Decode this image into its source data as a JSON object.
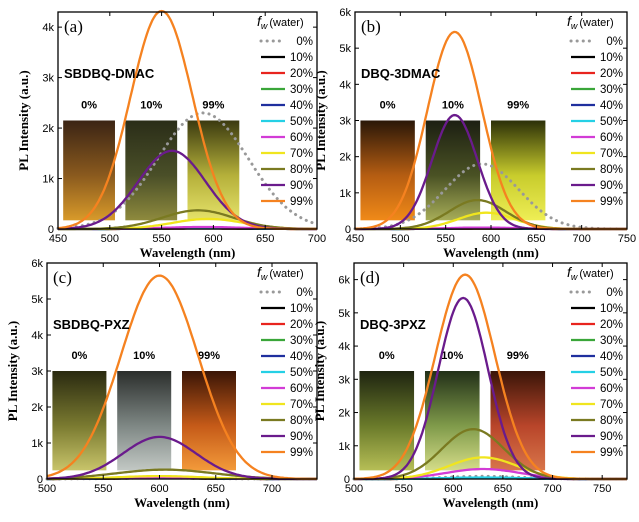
{
  "chart_data": [
    {
      "type": "line",
      "panel_label": "(a)",
      "compound": "SBDBQ-DMAC",
      "xlabel": "Wavelength (nm)",
      "ylabel": "PL Intensity (a.u.)",
      "xlim": [
        450,
        700
      ],
      "ylim": [
        0,
        4300
      ],
      "xticks": [
        450,
        500,
        550,
        600,
        650,
        700
      ],
      "yticks": [
        0,
        1000,
        2000,
        3000,
        4000
      ],
      "ytick_labels": [
        "0",
        "1k",
        "2k",
        "3k",
        "4k"
      ],
      "vial_labels": [
        "0%",
        "10%",
        "99%"
      ],
      "legend_title": "f",
      "legend_title_sub": "w",
      "legend_title_suffix": "(water)",
      "legend": [
        "0%",
        "10%",
        "20%",
        "30%",
        "40%",
        "50%",
        "60%",
        "70%",
        "80%",
        "90%",
        "99%"
      ],
      "series": [
        {
          "name": "0%",
          "color": "#999999",
          "dotted": true,
          "peak": 590,
          "width": 70,
          "amp": 2300
        },
        {
          "name": "10%",
          "color": "#000000",
          "peak": 590,
          "width": 60,
          "amp": 10
        },
        {
          "name": "20%",
          "color": "#e8241e",
          "peak": 590,
          "width": 60,
          "amp": 12
        },
        {
          "name": "30%",
          "color": "#3aa639",
          "peak": 590,
          "width": 60,
          "amp": 15
        },
        {
          "name": "40%",
          "color": "#1f2f9e",
          "peak": 590,
          "width": 60,
          "amp": 18
        },
        {
          "name": "50%",
          "color": "#25d0e5",
          "peak": 590,
          "width": 60,
          "amp": 25
        },
        {
          "name": "60%",
          "color": "#d23cd6",
          "peak": 590,
          "width": 60,
          "amp": 40
        },
        {
          "name": "70%",
          "color": "#f0e51e",
          "peak": 595,
          "width": 55,
          "amp": 200
        },
        {
          "name": "80%",
          "color": "#7a7a21",
          "peak": 585,
          "width": 55,
          "amp": 370
        },
        {
          "name": "90%",
          "color": "#6a1b8c",
          "peak": 560,
          "width": 52,
          "amp": 1550
        },
        {
          "name": "99%",
          "color": "#f58220",
          "peak": 550,
          "width": 48,
          "amp": 4320
        }
      ]
    },
    {
      "type": "line",
      "panel_label": "(b)",
      "compound": "DBQ-3DMAC",
      "xlabel": "Wavelength (nm)",
      "ylabel": "PL Intensity (a.u.)",
      "xlim": [
        450,
        750
      ],
      "ylim": [
        0,
        6000
      ],
      "xticks": [
        450,
        500,
        550,
        600,
        650,
        700,
        750
      ],
      "yticks": [
        0,
        1000,
        2000,
        3000,
        4000,
        5000,
        6000
      ],
      "ytick_labels": [
        "0",
        "1k",
        "2k",
        "3k",
        "4k",
        "5k",
        "6k"
      ],
      "vial_labels": [
        "0%",
        "10%",
        "99%"
      ],
      "legend_title": "f",
      "legend_title_sub": "w",
      "legend_title_suffix": "(water)",
      "legend": [
        "0%",
        "10%",
        "20%",
        "30%",
        "40%",
        "50%",
        "60%",
        "70%",
        "80%",
        "90%",
        "99%"
      ],
      "series": [
        {
          "name": "0%",
          "color": "#999999",
          "dotted": true,
          "peak": 590,
          "width": 65,
          "amp": 1800
        },
        {
          "name": "10%",
          "color": "#000000",
          "peak": 590,
          "width": 60,
          "amp": 10
        },
        {
          "name": "20%",
          "color": "#e8241e",
          "peak": 590,
          "width": 60,
          "amp": 12
        },
        {
          "name": "30%",
          "color": "#3aa639",
          "peak": 590,
          "width": 60,
          "amp": 15
        },
        {
          "name": "40%",
          "color": "#1f2f9e",
          "peak": 590,
          "width": 60,
          "amp": 18
        },
        {
          "name": "50%",
          "color": "#25d0e5",
          "peak": 590,
          "width": 60,
          "amp": 25
        },
        {
          "name": "60%",
          "color": "#d23cd6",
          "peak": 590,
          "width": 60,
          "amp": 40
        },
        {
          "name": "70%",
          "color": "#f0e51e",
          "peak": 595,
          "width": 50,
          "amp": 450
        },
        {
          "name": "80%",
          "color": "#7a7a21",
          "peak": 585,
          "width": 50,
          "amp": 800
        },
        {
          "name": "90%",
          "color": "#6a1b8c",
          "peak": 560,
          "width": 40,
          "amp": 3150
        },
        {
          "name": "99%",
          "color": "#f58220",
          "peak": 560,
          "width": 48,
          "amp": 5450
        }
      ]
    },
    {
      "type": "line",
      "panel_label": "(c)",
      "compound": "SBDBQ-PXZ",
      "xlabel": "Wavelength (nm)",
      "ylabel": "PL Intensity (a.u.)",
      "xlim": [
        500,
        740
      ],
      "ylim": [
        0,
        6000
      ],
      "xticks": [
        500,
        550,
        600,
        650,
        700
      ],
      "yticks": [
        0,
        1000,
        2000,
        3000,
        4000,
        5000,
        6000
      ],
      "ytick_labels": [
        "0",
        "1k",
        "2k",
        "3k",
        "4k",
        "5k",
        "6k"
      ],
      "vial_labels": [
        "0%",
        "10%",
        "99%"
      ],
      "legend_title": "f",
      "legend_title_sub": "w",
      "legend_title_suffix": "(water)",
      "legend": [
        "0%",
        "10%",
        "20%",
        "30%",
        "40%",
        "50%",
        "60%",
        "70%",
        "80%",
        "90%",
        "99%"
      ],
      "series": [
        {
          "name": "0%",
          "color": "#999999",
          "dotted": true,
          "peak": 600,
          "width": 60,
          "amp": 30
        },
        {
          "name": "10%",
          "color": "#000000",
          "peak": 600,
          "width": 60,
          "amp": 20
        },
        {
          "name": "20%",
          "color": "#e8241e",
          "peak": 600,
          "width": 60,
          "amp": 25
        },
        {
          "name": "30%",
          "color": "#3aa639",
          "peak": 600,
          "width": 60,
          "amp": 30
        },
        {
          "name": "40%",
          "color": "#1f2f9e",
          "peak": 600,
          "width": 60,
          "amp": 35
        },
        {
          "name": "50%",
          "color": "#25d0e5",
          "peak": 600,
          "width": 60,
          "amp": 40
        },
        {
          "name": "60%",
          "color": "#d23cd6",
          "peak": 600,
          "width": 60,
          "amp": 50
        },
        {
          "name": "70%",
          "color": "#f0e51e",
          "peak": 600,
          "width": 60,
          "amp": 80
        },
        {
          "name": "80%",
          "color": "#7a7a21",
          "peak": 605,
          "width": 70,
          "amp": 260
        },
        {
          "name": "90%",
          "color": "#6a1b8c",
          "peak": 600,
          "width": 52,
          "amp": 1170
        },
        {
          "name": "99%",
          "color": "#f58220",
          "peak": 600,
          "width": 55,
          "amp": 5650
        }
      ]
    },
    {
      "type": "line",
      "panel_label": "(d)",
      "compound": "DBQ-3PXZ",
      "xlabel": "Wavelength (nm)",
      "ylabel": "PL Intensity (a.u.)",
      "xlim": [
        500,
        775
      ],
      "ylim": [
        0,
        6500
      ],
      "xticks": [
        500,
        550,
        600,
        650,
        700,
        750
      ],
      "yticks": [
        0,
        1000,
        2000,
        3000,
        4000,
        5000,
        6000
      ],
      "ytick_labels": [
        "0",
        "1k",
        "2k",
        "3k",
        "4k",
        "5k",
        "6k"
      ],
      "vial_labels": [
        "0%",
        "10%",
        "99%"
      ],
      "legend_title": "f",
      "legend_title_sub": "w",
      "legend_title_suffix": "(water)",
      "legend": [
        "0%",
        "10%",
        "20%",
        "30%",
        "40%",
        "50%",
        "60%",
        "70%",
        "80%",
        "90%",
        "99%"
      ],
      "series": [
        {
          "name": "0%",
          "color": "#999999",
          "dotted": true,
          "peak": 630,
          "width": 60,
          "amp": 80
        },
        {
          "name": "10%",
          "color": "#000000",
          "peak": 630,
          "width": 60,
          "amp": 20
        },
        {
          "name": "20%",
          "color": "#e8241e",
          "peak": 630,
          "width": 60,
          "amp": 25
        },
        {
          "name": "30%",
          "color": "#3aa639",
          "peak": 630,
          "width": 60,
          "amp": 30
        },
        {
          "name": "40%",
          "color": "#1f2f9e",
          "peak": 630,
          "width": 60,
          "amp": 35
        },
        {
          "name": "50%",
          "color": "#25d0e5",
          "peak": 630,
          "width": 60,
          "amp": 45
        },
        {
          "name": "60%",
          "color": "#d23cd6",
          "peak": 630,
          "width": 60,
          "amp": 300
        },
        {
          "name": "70%",
          "color": "#f0e51e",
          "peak": 630,
          "width": 55,
          "amp": 650
        },
        {
          "name": "80%",
          "color": "#7a7a21",
          "peak": 620,
          "width": 50,
          "amp": 1500
        },
        {
          "name": "90%",
          "color": "#6a1b8c",
          "peak": 610,
          "width": 40,
          "amp": 5450
        },
        {
          "name": "99%",
          "color": "#f58220",
          "peak": 612,
          "width": 48,
          "amp": 6150
        }
      ]
    }
  ]
}
